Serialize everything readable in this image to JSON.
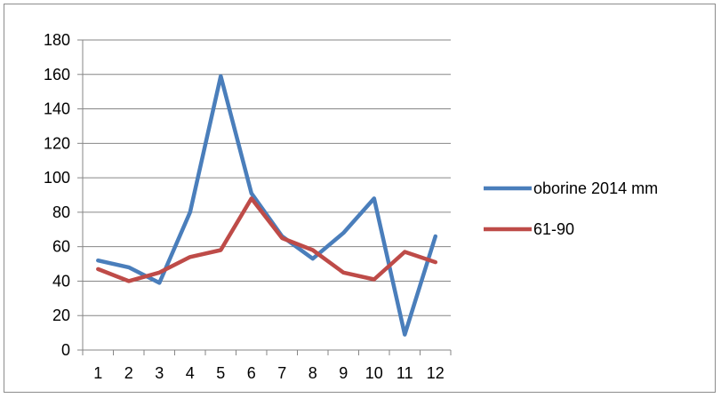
{
  "chart_data": {
    "type": "line",
    "title": "",
    "xlabel": "",
    "ylabel": "",
    "categories": [
      "1",
      "2",
      "3",
      "4",
      "5",
      "6",
      "7",
      "8",
      "9",
      "10",
      "11",
      "12"
    ],
    "ylim": [
      0,
      180
    ],
    "yticks": [
      "0",
      "20",
      "40",
      "60",
      "80",
      "100",
      "120",
      "140",
      "160",
      "180"
    ],
    "grid": "horizontal",
    "legend_position": "right",
    "series": [
      {
        "name": "oborine 2014 mm",
        "color": "#4a7ebb",
        "values": [
          52,
          48,
          39,
          80,
          159,
          91,
          66,
          53,
          68,
          88,
          9,
          66
        ]
      },
      {
        "name": "61-90",
        "color": "#be4b48",
        "values": [
          47,
          40,
          45,
          54,
          58,
          88,
          65,
          58,
          45,
          41,
          57,
          51
        ]
      }
    ]
  }
}
